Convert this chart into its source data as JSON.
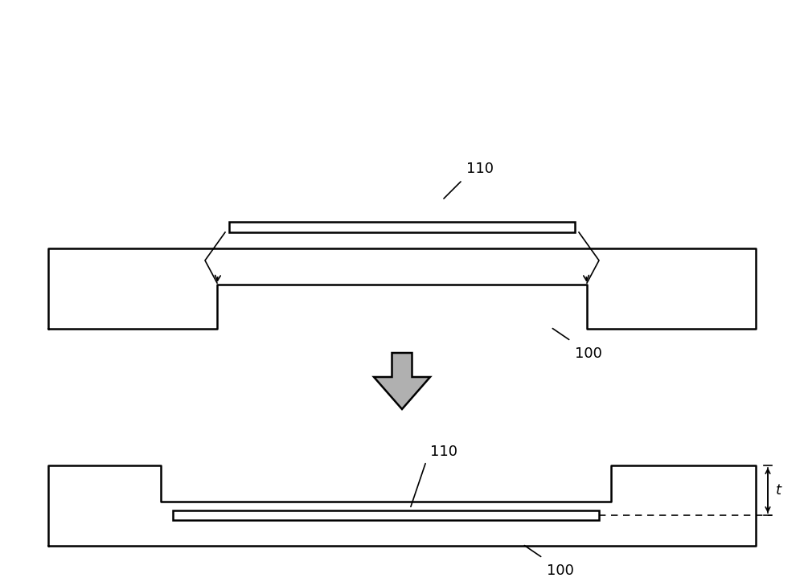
{
  "bg_color": "#ffffff",
  "line_color": "#000000",
  "line_width": 1.8,
  "arrow_gray": "#aaaaaa",
  "dashed_color": "#000000",
  "label_110_top": "110",
  "label_100_top": "100",
  "label_110_bot": "110",
  "label_100_bot": "100",
  "label_t": "t"
}
